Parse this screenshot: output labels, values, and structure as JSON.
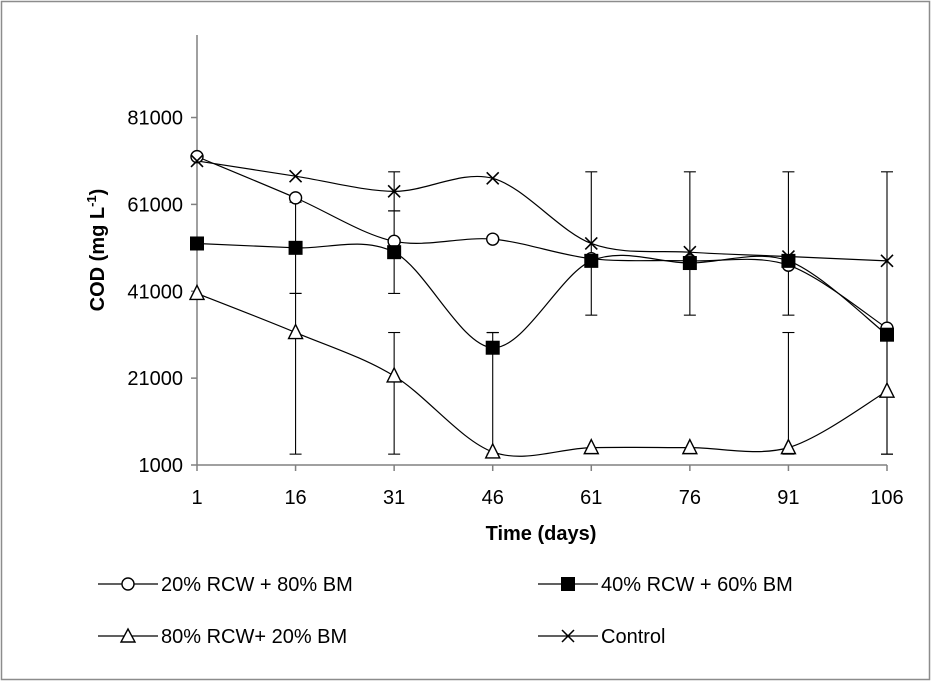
{
  "chart_data": {
    "type": "line",
    "xlabel": "Time (days)",
    "ylabel_main": "COD (mg L",
    "ylabel_sup": "-1",
    "ylabel_close": ")",
    "x": [
      1,
      16,
      31,
      46,
      61,
      76,
      91,
      106
    ],
    "x_ticks": [
      "1",
      "16",
      "31",
      "46",
      "61",
      "76",
      "91",
      "106"
    ],
    "y_ticks": [
      "1000",
      "21000",
      "41000",
      "61000",
      "81000"
    ],
    "y_tick_values": [
      1000,
      21000,
      41000,
      61000,
      81000
    ],
    "ylim": [
      1000,
      100000
    ],
    "grid": false,
    "legend_position": "bottom",
    "series": [
      {
        "name": "20% RCW + 80% BM",
        "marker": "open-circle",
        "values": [
          72000,
          62500,
          52500,
          53000,
          48500,
          48000,
          47000,
          32500
        ],
        "error_low": [
          null,
          null,
          null,
          null,
          null,
          null,
          null,
          null
        ],
        "error_high": [
          null,
          null,
          null,
          null,
          null,
          null,
          null,
          null
        ]
      },
      {
        "name": "40% RCW + 60% BM",
        "marker": "filled-square",
        "values": [
          52000,
          51000,
          50000,
          28000,
          48000,
          47500,
          48000,
          31000
        ],
        "error_low": [
          null,
          40500,
          40500,
          31500,
          35500,
          35500,
          35500,
          null
        ],
        "error_high": [
          null,
          61500,
          59500,
          31500,
          68500,
          68500,
          68500,
          null
        ]
      },
      {
        "name": "80% RCW+ 20% BM",
        "marker": "open-triangle",
        "values": [
          40500,
          31500,
          21500,
          4000,
          5000,
          5000,
          5000,
          18000
        ],
        "error_low": [
          null,
          3500,
          3500,
          3500,
          null,
          null,
          3500,
          3500
        ],
        "error_high": [
          null,
          40500,
          31500,
          31500,
          31500,
          31500,
          31500,
          31500
        ]
      },
      {
        "name": "Control",
        "marker": "x",
        "values": [
          71000,
          67500,
          64000,
          67000,
          52000,
          50000,
          49000,
          48000
        ],
        "error_low": [
          null,
          null,
          59500,
          null,
          null,
          null,
          null,
          3500
        ],
        "error_high": [
          null,
          null,
          68500,
          null,
          null,
          null,
          null,
          68500
        ]
      }
    ]
  }
}
